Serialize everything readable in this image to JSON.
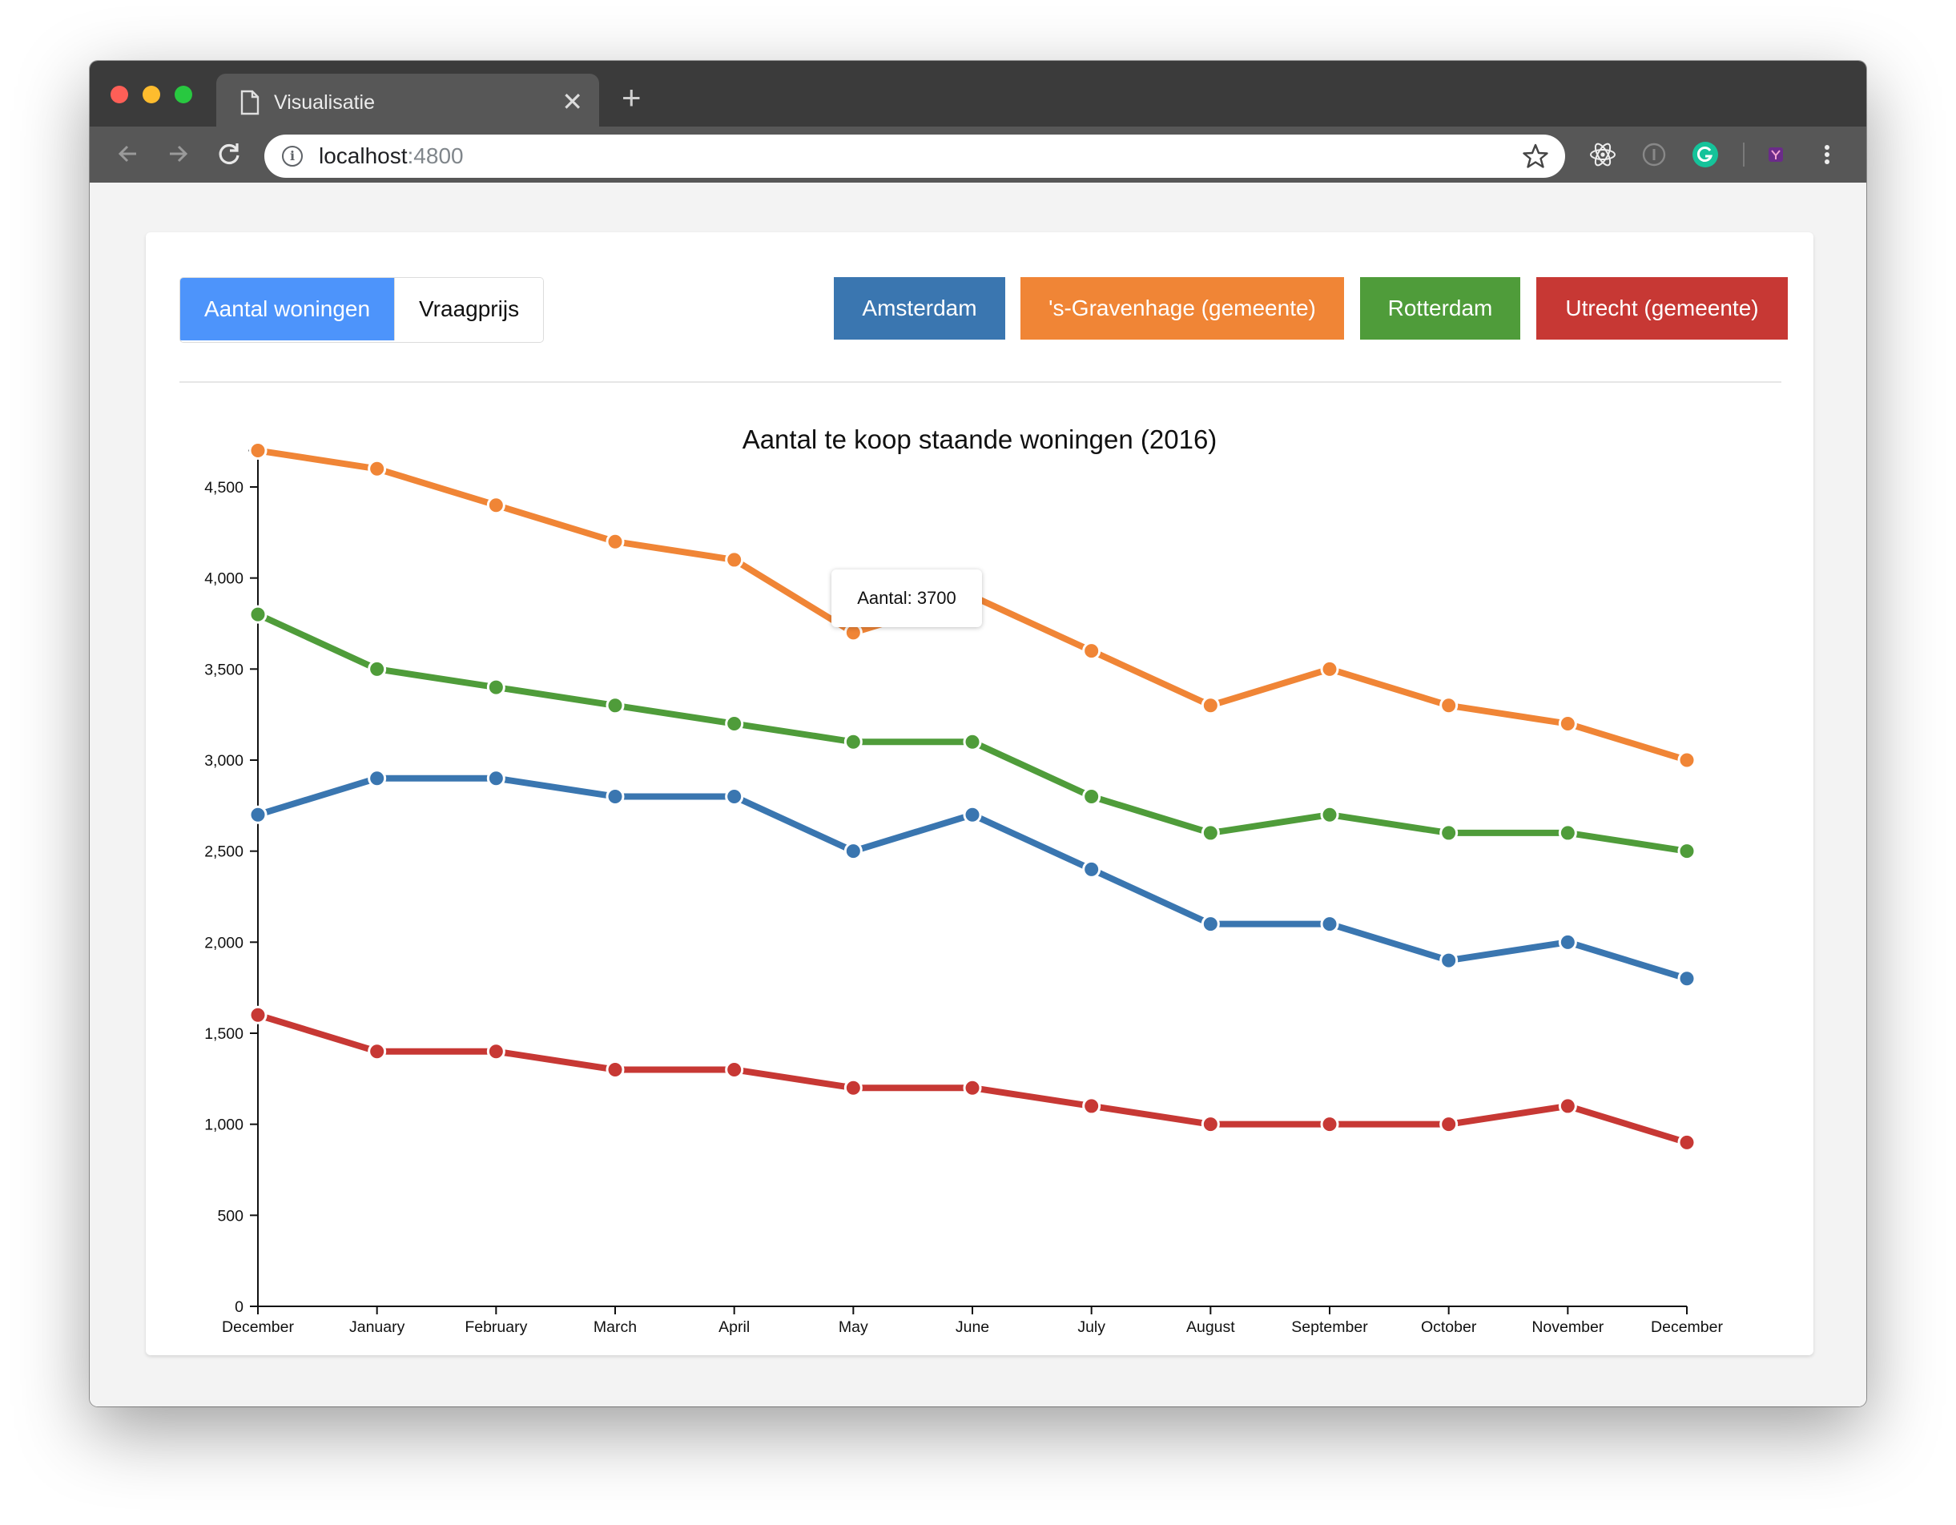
{
  "browser": {
    "tab_title": "Visualisatie",
    "url_host": "localhost",
    "url_port": ":4800"
  },
  "metric_toggle": {
    "options": [
      "Aantal woningen",
      "Vraagprijs"
    ],
    "active": "Aantal woningen"
  },
  "cities": [
    {
      "label": "Amsterdam",
      "color": "#3a76b0"
    },
    {
      "label": "'s-Gravenhage (gemeente)",
      "color": "#f08536"
    },
    {
      "label": "Rotterdam",
      "color": "#4f9c3a"
    },
    {
      "label": "Utrecht (gemeente)",
      "color": "#c73834"
    }
  ],
  "tooltip": {
    "text": "Aantal: 3700"
  },
  "chart_data": {
    "type": "line",
    "title": "Aantal te koop staande woningen (2016)",
    "xlabel": "",
    "ylabel": "",
    "categories": [
      "December",
      "January",
      "February",
      "March",
      "April",
      "May",
      "June",
      "July",
      "August",
      "September",
      "October",
      "November",
      "December"
    ],
    "ylim": [
      0,
      4700
    ],
    "yticks": [
      0,
      500,
      1000,
      1500,
      2000,
      2500,
      3000,
      3500,
      4000,
      4500
    ],
    "ytick_labels": [
      "0",
      "500",
      "1,000",
      "1,500",
      "2,000",
      "2,500",
      "3,000",
      "3,500",
      "4,000",
      "4,500"
    ],
    "grid": false,
    "series": [
      {
        "name": "'s-Gravenhage (gemeente)",
        "color": "#f08536",
        "values": [
          4700,
          4600,
          4400,
          4200,
          4100,
          3700,
          3900,
          3600,
          3300,
          3500,
          3300,
          3200,
          3000
        ]
      },
      {
        "name": "Rotterdam",
        "color": "#4f9c3a",
        "values": [
          3800,
          3500,
          3400,
          3300,
          3200,
          3100,
          3100,
          2800,
          2600,
          2700,
          2600,
          2600,
          2500
        ]
      },
      {
        "name": "Amsterdam",
        "color": "#3a76b0",
        "values": [
          2700,
          2900,
          2900,
          2800,
          2800,
          2500,
          2700,
          2400,
          2100,
          2100,
          1900,
          2000,
          1800
        ]
      },
      {
        "name": "Utrecht (gemeente)",
        "color": "#c73834",
        "values": [
          1600,
          1400,
          1400,
          1300,
          1300,
          1200,
          1200,
          1100,
          1000,
          1000,
          1000,
          1100,
          900
        ]
      }
    ]
  }
}
